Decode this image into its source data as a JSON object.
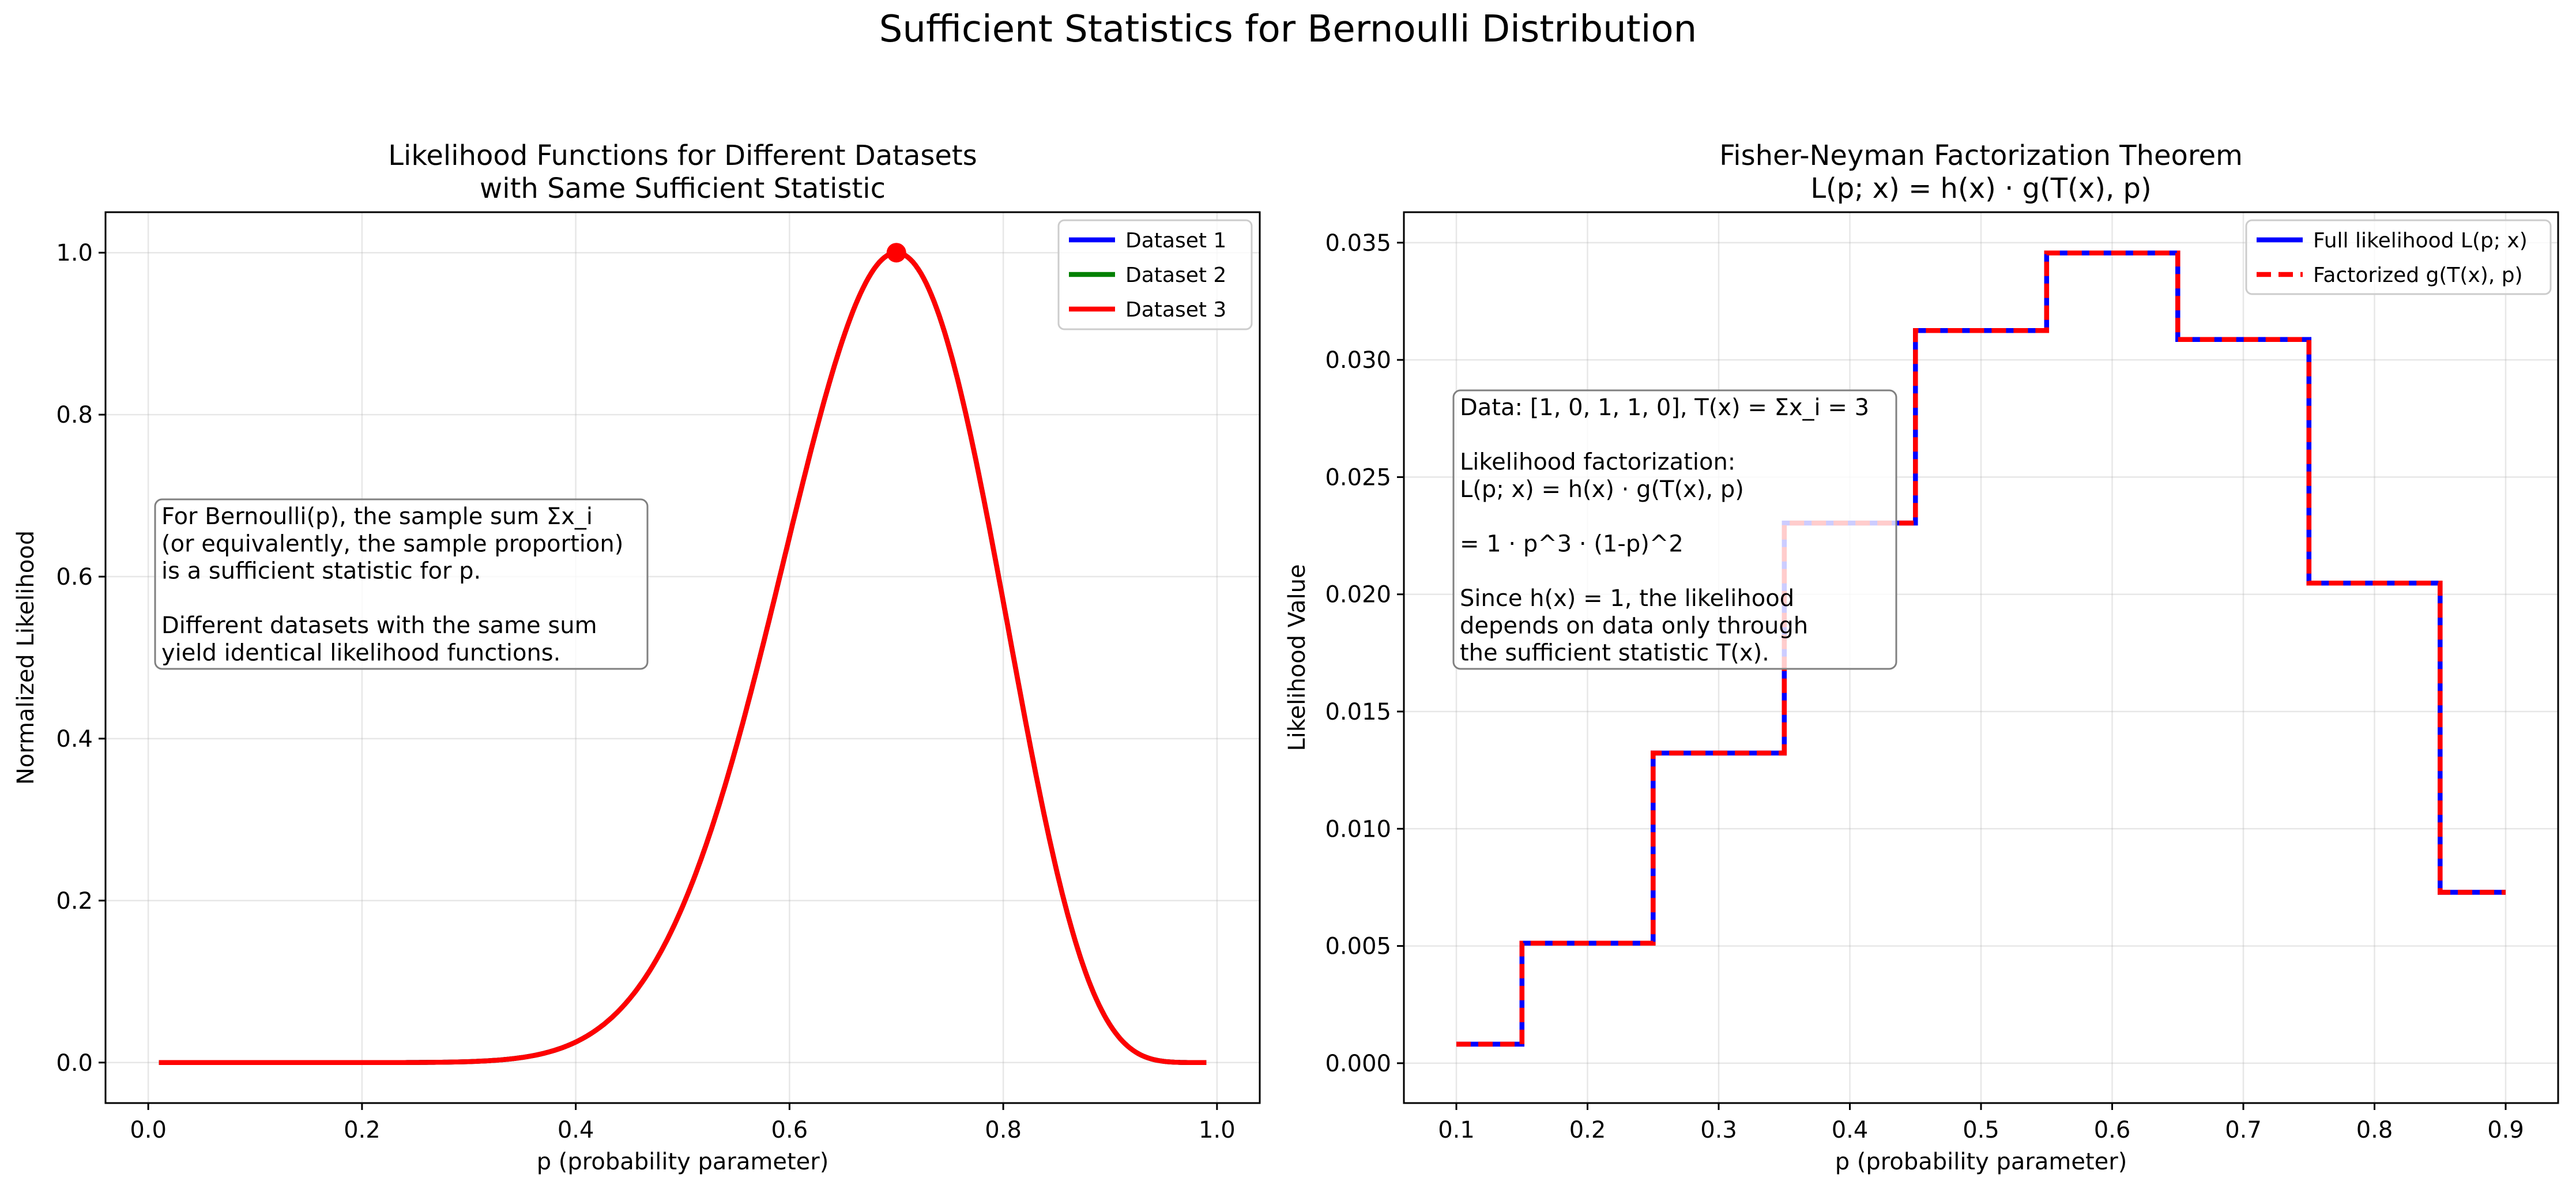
{
  "figure_title": "Sufficient Statistics for Bernoulli Distribution",
  "chart_data": [
    {
      "type": "line",
      "title": [
        "Likelihood Functions for Different Datasets",
        "with Same Sufficient Statistic"
      ],
      "xlabel": "p (probability parameter)",
      "ylabel": "Normalized Likelihood",
      "xlim": [
        -0.04,
        1.04
      ],
      "ylim": [
        -0.05,
        1.05
      ],
      "xticks": [
        0.0,
        0.2,
        0.4,
        0.6,
        0.8,
        1.0
      ],
      "xtick_labels": [
        "0.0",
        "0.2",
        "0.4",
        "0.6",
        "0.8",
        "1.0"
      ],
      "yticks": [
        0.0,
        0.2,
        0.4,
        0.6,
        0.8,
        1.0
      ],
      "ytick_labels": [
        "0.0",
        "0.2",
        "0.4",
        "0.6",
        "0.8",
        "1.0"
      ],
      "grid": true,
      "legend_position": "top-right",
      "x_range": [
        0.01,
        0.99
      ],
      "series": [
        {
          "name": "Dataset 1",
          "color": "#0000ff",
          "exponent_success": 14,
          "exponent_failure": 6
        },
        {
          "name": "Dataset 2",
          "color": "#008000",
          "exponent_success": 14,
          "exponent_failure": 6
        },
        {
          "name": "Dataset 3",
          "color": "#ff0000",
          "exponent_success": 14,
          "exponent_failure": 6
        }
      ],
      "marker": {
        "x": 0.7,
        "y": 1.0,
        "color": "#ff0000"
      },
      "annotation": [
        "For Bernoulli(p), the sample sum Σx_i",
        "(or equivalently, the sample proportion)",
        "is a sufficient statistic for p.",
        "",
        "Different datasets with the same sum",
        "yield identical likelihood functions."
      ]
    },
    {
      "type": "line",
      "title": [
        "Fisher-Neyman Factorization Theorem",
        "L(p; x) = h(x) · g(T(x), p)"
      ],
      "xlabel": "p (probability parameter)",
      "ylabel": "Likelihood Value",
      "xlim": [
        0.06,
        0.94
      ],
      "ylim": [
        -0.0017,
        0.0363
      ],
      "xticks": [
        0.1,
        0.2,
        0.3,
        0.4,
        0.5,
        0.6,
        0.7,
        0.8,
        0.9
      ],
      "xtick_labels": [
        "0.1",
        "0.2",
        "0.3",
        "0.4",
        "0.5",
        "0.6",
        "0.7",
        "0.8",
        "0.9"
      ],
      "yticks": [
        0.0,
        0.005,
        0.01,
        0.015,
        0.02,
        0.025,
        0.03,
        0.035
      ],
      "ytick_labels": [
        "0.000",
        "0.005",
        "0.010",
        "0.015",
        "0.020",
        "0.025",
        "0.030",
        "0.035"
      ],
      "grid": true,
      "legend_position": "top-right",
      "x": [
        0.1,
        0.2,
        0.3,
        0.4,
        0.5,
        0.6,
        0.7,
        0.8,
        0.9
      ],
      "series": [
        {
          "name": "Full likelihood L(p; x)",
          "color": "#0000ff",
          "style": "solid",
          "values": [
            0.00081,
            0.00512,
            0.01323,
            0.02304,
            0.03125,
            0.03456,
            0.03087,
            0.02048,
            0.00729
          ]
        },
        {
          "name": "Factorized g(T(x), p)",
          "color": "#ff0000",
          "style": "dashed",
          "values": [
            0.00081,
            0.00512,
            0.01323,
            0.02304,
            0.03125,
            0.03456,
            0.03087,
            0.02048,
            0.00729
          ]
        }
      ],
      "annotation": [
        "Data: [1, 0, 1, 1, 0], T(x) = Σx_i = 3",
        "",
        "Likelihood factorization:",
        "L(p; x) = h(x) · g(T(x), p)",
        "",
        "= 1 · p^3 · (1-p)^2",
        "",
        "Since h(x) = 1, the likelihood",
        "depends on data only through",
        "the sufficient statistic T(x)."
      ]
    }
  ]
}
